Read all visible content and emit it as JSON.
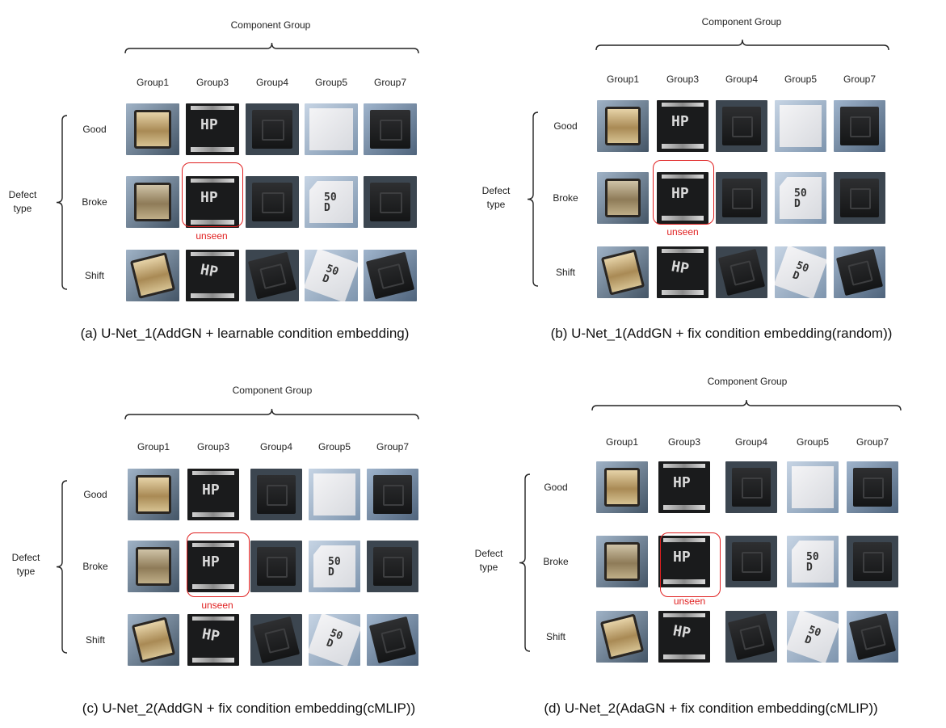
{
  "header": "Component Group",
  "groups": [
    "Group1",
    "Group3",
    "Group4",
    "Group5",
    "Group7"
  ],
  "defect_types": [
    "Good",
    "Broke",
    "Shift"
  ],
  "defect_label": [
    "Defect",
    "type"
  ],
  "unseen_label": "unseen",
  "panel_a": {
    "caption": "(a) U-Net_1(AddGN  + learnable condition embedding)"
  },
  "panel_b": {
    "caption": "(b) U-Net_1(AddGN  + fix condition embedding(random))"
  },
  "panel_c": {
    "caption": "(c) U-Net_2(AddGN  + fix condition embedding(cMLIP))"
  },
  "panel_d": {
    "caption": "(d) U-Net_2(AdaGN  + fix condition embedding(cMLIP))"
  },
  "marks": {
    "group3": "HP",
    "group5": "50 D"
  },
  "colors": {
    "highlight": "#e02020",
    "brace": "#222222",
    "background": "#ffffff"
  },
  "thumbnails": "component_photos"
}
